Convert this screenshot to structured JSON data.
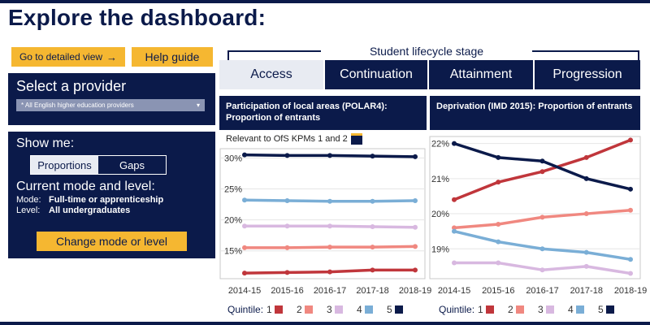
{
  "page_title": "Explore the dashboard:",
  "buttons": {
    "detailed_view": "Go to detailed view",
    "detailed_view_arrow": "→",
    "help_guide": "Help guide",
    "change_mode": "Change mode or level"
  },
  "provider": {
    "heading": "Select a provider",
    "selected": "* All English higher education providers",
    "dropdown_arrow": "▾"
  },
  "show_me": {
    "heading": "Show me:",
    "options": [
      "Proportions",
      "Gaps"
    ],
    "selected": "Proportions"
  },
  "mode_level": {
    "heading": "Current mode and level:",
    "mode_label": "Mode:",
    "mode_value": "Full-time or apprenticeship",
    "level_label": "Level:",
    "level_value": "All undergraduates"
  },
  "lifecycle": {
    "label": "Student lifecycle stage",
    "tabs": [
      "Access",
      "Continuation",
      "Attainment",
      "Progression"
    ],
    "active": "Access"
  },
  "kpi_note": "Relevant to OfS KPMs 1 and 2",
  "colors": {
    "navy": "#0b1a4a",
    "yellow": "#f5b731",
    "q1": "#c0363b",
    "q2": "#f08880",
    "q3": "#d8b8e0",
    "q4": "#7aaed6",
    "q5": "#0b1a4a"
  },
  "chart_data": [
    {
      "type": "line",
      "title": "Participation of local areas (POLAR4): Proportion of entrants",
      "x": [
        "2014-15",
        "2015-16",
        "2016-17",
        "2017-18",
        "2018-19"
      ],
      "ylim": [
        10.5,
        31.5
      ],
      "yticks": [
        15,
        20,
        25,
        30
      ],
      "ytick_labels": [
        "15%",
        "20%",
        "25%",
        "30%"
      ],
      "legend_label": "Quintile:",
      "series": [
        {
          "name": "1",
          "values": [
            11.4,
            11.5,
            11.6,
            11.9,
            11.9
          ]
        },
        {
          "name": "2",
          "values": [
            15.5,
            15.5,
            15.6,
            15.6,
            15.7
          ]
        },
        {
          "name": "3",
          "values": [
            19.0,
            19.0,
            19.0,
            18.9,
            18.8
          ]
        },
        {
          "name": "4",
          "values": [
            23.2,
            23.1,
            23.0,
            23.0,
            23.1
          ]
        },
        {
          "name": "5",
          "values": [
            30.5,
            30.4,
            30.4,
            30.3,
            30.2
          ]
        }
      ]
    },
    {
      "type": "line",
      "title": "Deprivation (IMD 2015): Proportion of entrants",
      "x": [
        "2014-15",
        "2015-16",
        "2016-17",
        "2017-18",
        "2018-19"
      ],
      "ylim": [
        18.15,
        22.2
      ],
      "yticks": [
        19,
        20,
        21,
        22
      ],
      "ytick_labels": [
        "19%",
        "20%",
        "21%",
        "22%"
      ],
      "legend_label": "Quintile:",
      "series": [
        {
          "name": "1",
          "values": [
            20.4,
            20.9,
            21.2,
            21.6,
            22.1
          ]
        },
        {
          "name": "2",
          "values": [
            19.6,
            19.7,
            19.9,
            20.0,
            20.1
          ]
        },
        {
          "name": "3",
          "values": [
            18.6,
            18.6,
            18.4,
            18.5,
            18.3
          ]
        },
        {
          "name": "4",
          "values": [
            19.5,
            19.2,
            19.0,
            18.9,
            18.7
          ]
        },
        {
          "name": "5",
          "values": [
            22.0,
            21.6,
            21.5,
            21.0,
            20.7
          ]
        }
      ]
    }
  ]
}
